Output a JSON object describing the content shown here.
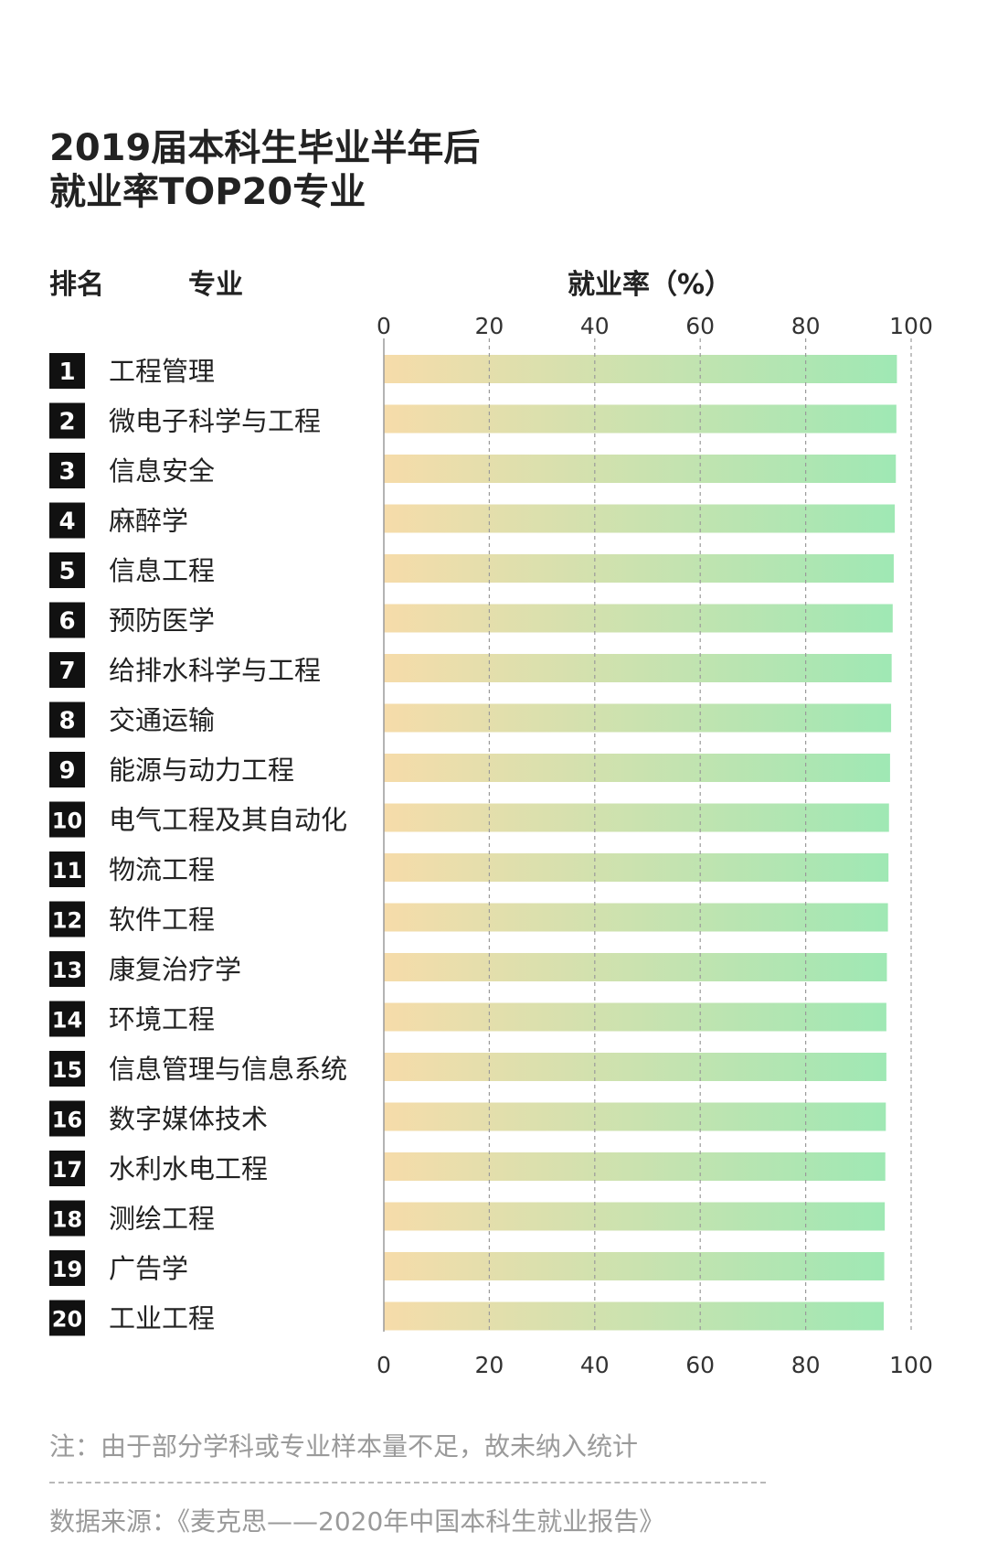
{
  "title_line1": "2019届本科生毕业半年后",
  "title_line2": "就业率TOP20专业",
  "headers": {
    "rank": "排名",
    "major": "专业",
    "rate": "就业率（%）"
  },
  "note": "注：由于部分学科或专业样本量不足，故未纳入统计",
  "source": "数据来源：《麦克思——2020年中国本科生就业报告》",
  "colors": {
    "bar_start": "#f6dcaa",
    "bar_end": "#9fe8b4",
    "rank_box": "#111111",
    "grid": "#9a9a9a"
  },
  "chart_data": {
    "type": "bar",
    "orientation": "horizontal",
    "title": "2019届本科生毕业半年后就业率TOP20专业",
    "xlabel": "就业率（%）",
    "xlim": [
      0,
      100
    ],
    "xticks": [
      0,
      20,
      40,
      60,
      80,
      100
    ],
    "grid": true,
    "ranks": [
      "1",
      "2",
      "3",
      "4",
      "5",
      "6",
      "7",
      "8",
      "9",
      "10",
      "11",
      "12",
      "13",
      "14",
      "15",
      "16",
      "17",
      "18",
      "19",
      "20"
    ],
    "categories": [
      "工程管理",
      "微电子科学与工程",
      "信息安全",
      "麻醉学",
      "信息工程",
      "预防医学",
      "给排水科学与工程",
      "交通运输",
      "能源与动力工程",
      "电气工程及其自动化",
      "物流工程",
      "软件工程",
      "康复治疗学",
      "环境工程",
      "信息管理与信息系统",
      "数字媒体技术",
      "水利水电工程",
      "测绘工程",
      "广告学",
      "工业工程"
    ],
    "values": [
      97.3,
      97.2,
      97.1,
      96.9,
      96.7,
      96.5,
      96.3,
      96.2,
      96.0,
      95.8,
      95.7,
      95.6,
      95.4,
      95.3,
      95.3,
      95.2,
      95.1,
      95.0,
      94.9,
      94.8
    ]
  }
}
